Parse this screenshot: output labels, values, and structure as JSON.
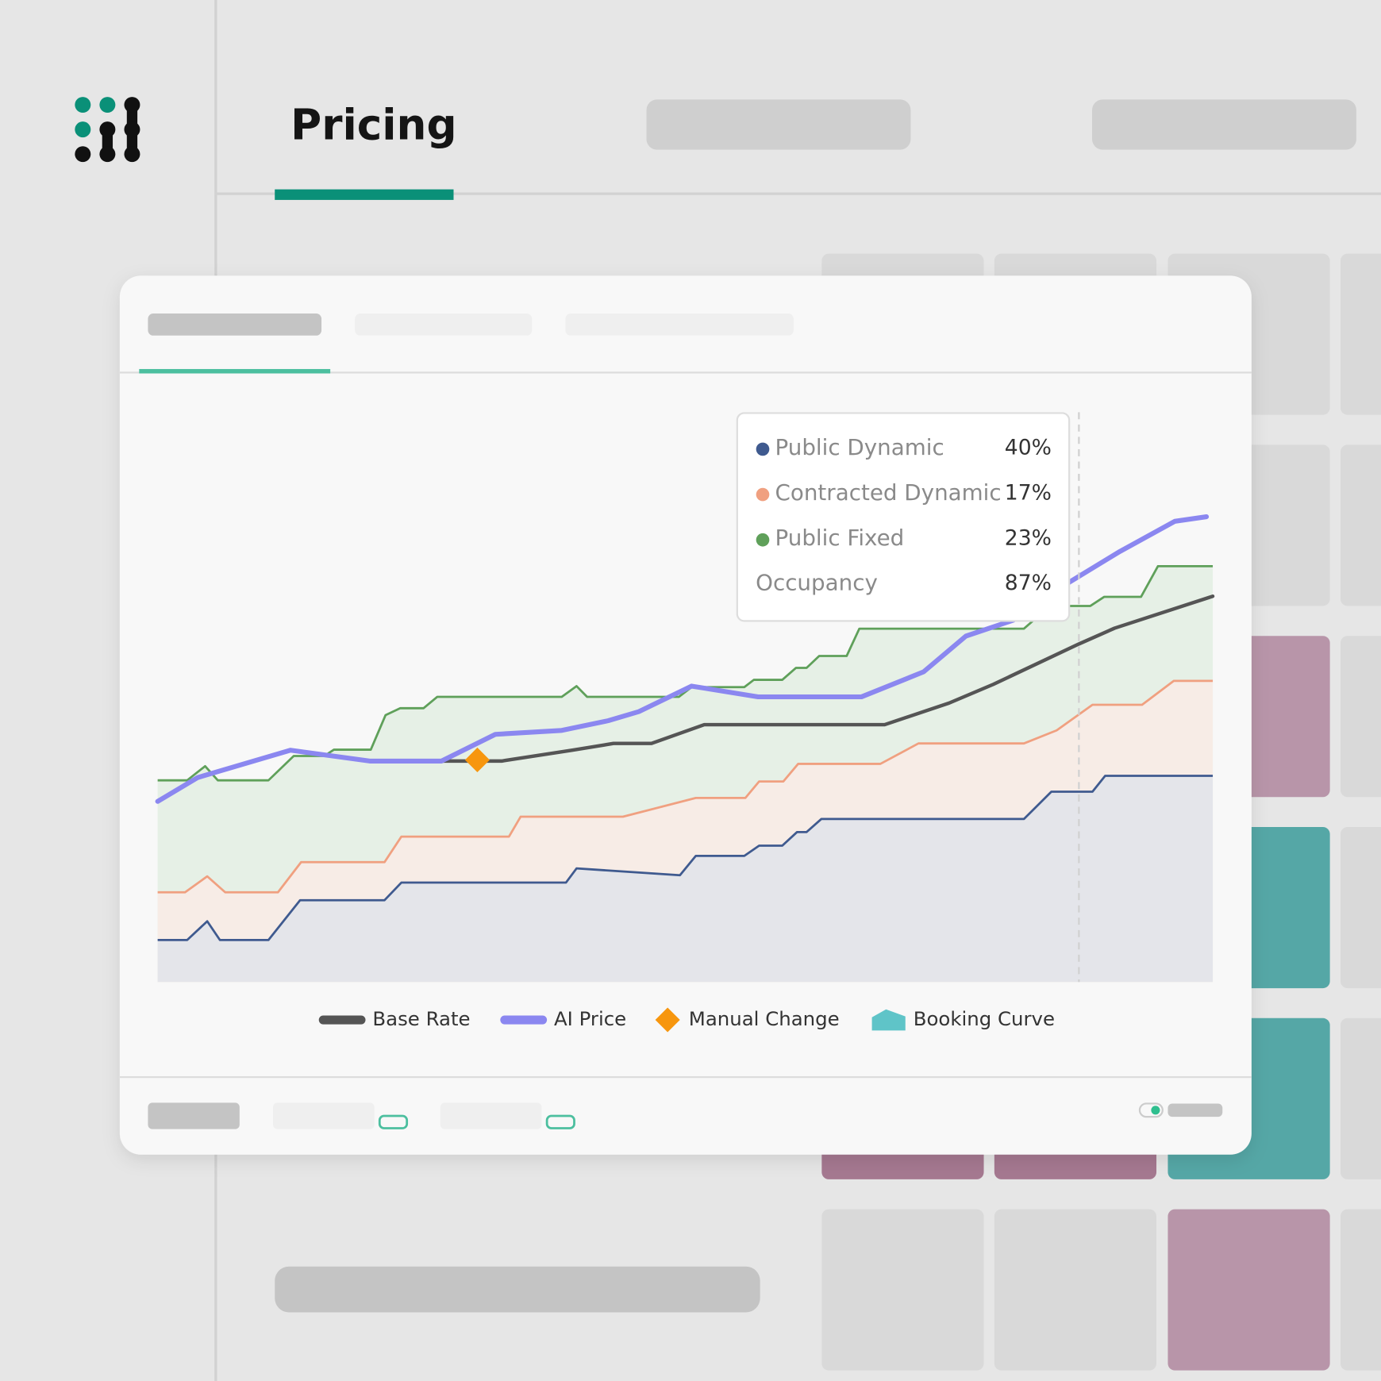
{
  "header": {
    "title": "Pricing"
  },
  "chart_data": {
    "type": "line",
    "xlim": [
      0,
      100
    ],
    "ylim": [
      0,
      100
    ],
    "series": [
      {
        "name": "Base Rate",
        "style": "line",
        "color": "#555555",
        "x": [
          20.1,
          26.8,
          32.6,
          39.3,
          43.2,
          46.8,
          51.8,
          68.9,
          75.0,
          79.2,
          87.3,
          90.7,
          100
        ],
        "values": [
          38.9,
          38.9,
          38.9,
          40.8,
          42.0,
          42.0,
          45.3,
          45.3,
          49.1,
          52.4,
          59.5,
          62.3,
          67.9
        ]
      },
      {
        "name": "AI Price",
        "style": "line",
        "color": "#8b87f0",
        "x": [
          0,
          3.8,
          12.6,
          20.1,
          26.9,
          32.0,
          38.3,
          42.7,
          45.6,
          50.6,
          56.9,
          66.7,
          72.6,
          76.6,
          81.1,
          86.5,
          91.2,
          96.4,
          99.4
        ],
        "values": [
          31.8,
          36.0,
          40.8,
          38.9,
          38.9,
          43.6,
          44.3,
          46.0,
          47.6,
          52.1,
          50.2,
          50.2,
          54.6,
          60.9,
          63.7,
          70.5,
          75.8,
          81.1,
          81.9
        ]
      },
      {
        "name": "Manual Change",
        "style": "diamond",
        "color": "#f7960e",
        "x": [
          30.3
        ],
        "values": [
          39.1
        ]
      },
      {
        "name": "Public Dynamic",
        "style": "area",
        "color": "#3f5a8f",
        "fill": "#e4e5ea",
        "tooltip_value": "40%",
        "x": [
          0,
          2.8,
          4.7,
          5.9,
          10.5,
          13.5,
          21.5,
          23.1,
          38.7,
          39.7,
          49.5,
          51.0,
          55.6,
          57.0,
          59.2,
          60.6,
          61.5,
          62.9,
          82.1,
          84.7,
          88.6,
          89.8,
          100
        ],
        "values": [
          7.4,
          7.4,
          10.7,
          7.4,
          7.4,
          14.4,
          14.4,
          17.5,
          17.5,
          20.0,
          18.8,
          22.2,
          22.2,
          24.0,
          24.0,
          26.4,
          26.4,
          28.7,
          28.7,
          33.5,
          33.5,
          36.3,
          36.3
        ]
      },
      {
        "name": "Contracted Dynamic",
        "style": "area",
        "color": "#f0a080",
        "fill": "#f7ece6",
        "tooltip_value": "17%",
        "x": [
          0,
          2.6,
          4.7,
          6.4,
          11.4,
          13.6,
          21.5,
          23.1,
          33.3,
          34.4,
          44.1,
          51.0,
          55.7,
          57.0,
          59.3,
          60.7,
          68.5,
          72.1,
          82.1,
          85.2,
          88.6,
          93.3,
          96.3,
          100
        ],
        "values": [
          15.8,
          15.8,
          18.6,
          15.8,
          15.8,
          21.1,
          21.1,
          25.6,
          25.6,
          29.1,
          29.1,
          32.4,
          32.4,
          35.3,
          35.3,
          38.4,
          38.4,
          42.0,
          42.0,
          44.3,
          48.8,
          48.8,
          53.0,
          53.0
        ]
      },
      {
        "name": "Public Fixed",
        "style": "area",
        "color": "#5fa05a",
        "fill": "#e6f0e6",
        "tooltip_value": "23%",
        "x": [
          0,
          2.8,
          4.5,
          5.7,
          10.5,
          12.9,
          15.8,
          16.7,
          20.2,
          21.6,
          23.0,
          25.2,
          26.5,
          38.3,
          39.7,
          40.7,
          49.4,
          50.6,
          55.6,
          56.5,
          59.2,
          60.5,
          61.5,
          62.7,
          65.3,
          66.5,
          82.1,
          83.4,
          85.1,
          88.4,
          89.7,
          93.2,
          94.8,
          100
        ],
        "values": [
          35.5,
          35.5,
          38.0,
          35.5,
          35.5,
          39.8,
          39.8,
          40.9,
          40.9,
          47.0,
          48.2,
          48.2,
          50.2,
          50.2,
          52.1,
          50.2,
          50.2,
          51.9,
          51.9,
          53.2,
          53.2,
          55.3,
          55.3,
          57.4,
          57.4,
          62.2,
          62.2,
          64.3,
          66.2,
          66.2,
          67.8,
          67.8,
          73.2,
          73.2
        ]
      }
    ],
    "booking_curve": {
      "name": "Booking Curve",
      "color": "#5fc4c8"
    },
    "occupancy": {
      "label": "Occupancy",
      "value": "87%"
    }
  }
}
